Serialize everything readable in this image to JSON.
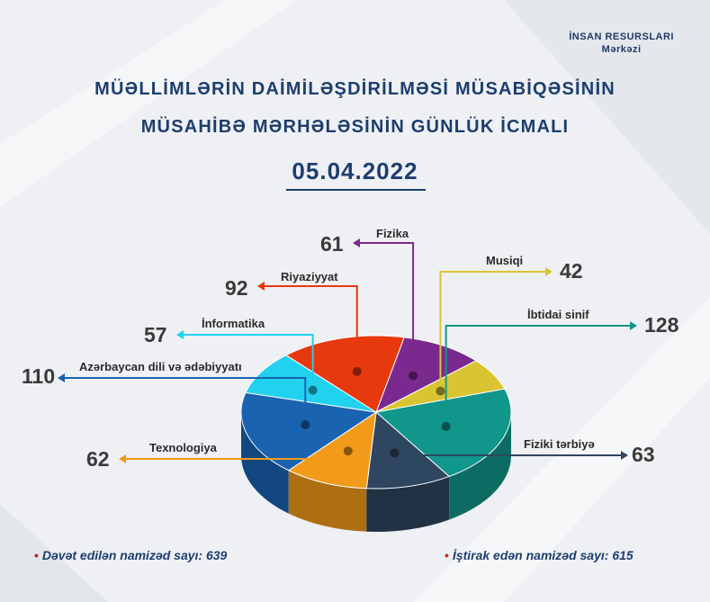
{
  "org": {
    "line1": "İNSAN RESURSLARI",
    "line2": "Mərkəzi"
  },
  "title": {
    "line1": "MÜƏLLİMLƏRİN DAİMİLƏŞDİRİLMƏSİ MÜSABİQƏSİNİN",
    "line2": "MÜSAHİBƏ MƏRHƏLƏSİNİN GÜNLÜK İCMALI"
  },
  "date": "05.04.2022",
  "chart_data": {
    "type": "pie",
    "categories": [
      "Fizika",
      "Musiqi",
      "İbtidai sinif",
      "Fiziki tərbiyə",
      "Texnologiya",
      "Azərbaycan dili və ədəbiyyatı",
      "İnformatika",
      "Riyaziyyat"
    ],
    "values": [
      61,
      42,
      128,
      63,
      62,
      110,
      57,
      92
    ],
    "colors": [
      "#7a2a8e",
      "#d9c531",
      "#10968a",
      "#2f4660",
      "#f29a1a",
      "#1a63b0",
      "#21d2ef",
      "#e8380d"
    ]
  },
  "footer": {
    "invited": "Dəvət edilən namizəd sayı: 639",
    "participated": "İştirak edən namizəd sayı: 615"
  }
}
